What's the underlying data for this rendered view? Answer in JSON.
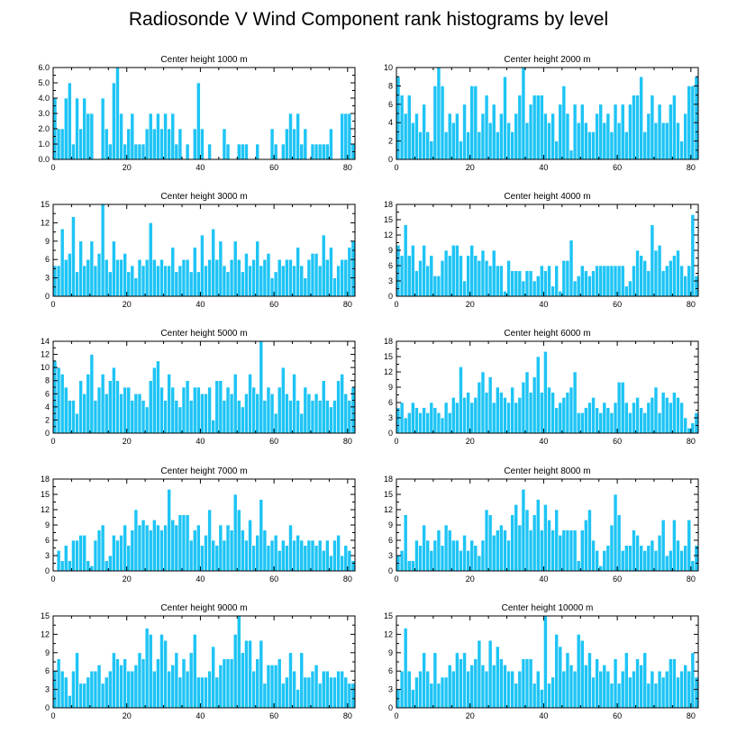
{
  "figure": {
    "title": "Radiosonde V Wind Component rank histograms by level"
  },
  "colors": {
    "bar": "#1ec4f5",
    "frame": "#000000"
  },
  "chart_data": [
    {
      "type": "bar",
      "title": "Center height 1000 m",
      "xlim": [
        0,
        82
      ],
      "ylim": [
        0,
        6
      ],
      "yticks": [
        0,
        1,
        2,
        3,
        4,
        5,
        6
      ],
      "ytick_labels": [
        "0.0",
        "1.0",
        "2.0",
        "3.0",
        "4.0",
        "5.0",
        "6.0"
      ],
      "xticks": [
        0,
        20,
        40,
        60,
        80
      ],
      "values": [
        4,
        2,
        2,
        4,
        5,
        1,
        4,
        2,
        4,
        3,
        3,
        0,
        0,
        4,
        2,
        1,
        5,
        6,
        3,
        1,
        2,
        3,
        1,
        1,
        1,
        2,
        3,
        2,
        3,
        2,
        3,
        2,
        3,
        1,
        2,
        0,
        1,
        0,
        2,
        5,
        2,
        0,
        1,
        0,
        0,
        0,
        2,
        1,
        0,
        0,
        1,
        1,
        1,
        0,
        0,
        1,
        0,
        0,
        0,
        2,
        1,
        0,
        1,
        2,
        3,
        2,
        3,
        1,
        2,
        0,
        1,
        1,
        1,
        1,
        1,
        2,
        0,
        0,
        3,
        3,
        3,
        1,
        4
      ]
    },
    {
      "type": "bar",
      "title": "Center height 2000 m",
      "xlim": [
        0,
        82
      ],
      "ylim": [
        0,
        10
      ],
      "yticks": [
        0,
        2,
        4,
        6,
        8,
        10
      ],
      "ytick_labels": [
        "0",
        "2",
        "4",
        "6",
        "8",
        "10"
      ],
      "xticks": [
        0,
        20,
        40,
        60,
        80
      ],
      "values": [
        9,
        7,
        5,
        7,
        4,
        5,
        3,
        6,
        3,
        2,
        8,
        10,
        8,
        3,
        5,
        4,
        5,
        2,
        6,
        3,
        8,
        8,
        3,
        5,
        7,
        4,
        6,
        3,
        5,
        9,
        4,
        3,
        5,
        7,
        10,
        4,
        6,
        7,
        7,
        7,
        5,
        4,
        5,
        2,
        6,
        8,
        5,
        1,
        6,
        4,
        6,
        4,
        3,
        3,
        5,
        6,
        4,
        5,
        3,
        6,
        4,
        6,
        3,
        6,
        7,
        7,
        9,
        3,
        5,
        7,
        4,
        6,
        4,
        4,
        6,
        7,
        4,
        2,
        5,
        8,
        8,
        9,
        9
      ]
    },
    {
      "type": "bar",
      "title": "Center height 3000 m",
      "xlim": [
        0,
        82
      ],
      "ylim": [
        0,
        15
      ],
      "yticks": [
        0,
        3,
        6,
        9,
        12,
        15
      ],
      "ytick_labels": [
        "0",
        "3",
        "6",
        "9",
        "12",
        "15"
      ],
      "xticks": [
        0,
        20,
        40,
        60,
        80
      ],
      "values": [
        5,
        5,
        11,
        6,
        7,
        13,
        4,
        9,
        5,
        6,
        9,
        5,
        7,
        15,
        6,
        4,
        9,
        6,
        6,
        7,
        4,
        5,
        3,
        6,
        5,
        6,
        12,
        6,
        5,
        6,
        5,
        5,
        8,
        4,
        5,
        6,
        6,
        4,
        8,
        4,
        10,
        5,
        6,
        11,
        6,
        9,
        5,
        4,
        6,
        9,
        6,
        4,
        7,
        5,
        6,
        9,
        5,
        6,
        7,
        3,
        4,
        6,
        5,
        6,
        6,
        5,
        8,
        5,
        3,
        6,
        7,
        7,
        5,
        10,
        6,
        8,
        3,
        5,
        6,
        6,
        8,
        9,
        10
      ]
    },
    {
      "type": "bar",
      "title": "Center height 4000 m",
      "xlim": [
        0,
        82
      ],
      "ylim": [
        0,
        18
      ],
      "yticks": [
        0,
        3,
        6,
        9,
        12,
        15,
        18
      ],
      "ytick_labels": [
        "0",
        "3",
        "6",
        "9",
        "12",
        "15",
        "18"
      ],
      "xticks": [
        0,
        20,
        40,
        60,
        80
      ],
      "values": [
        10,
        8,
        14,
        8,
        10,
        5,
        7,
        10,
        6,
        8,
        4,
        4,
        7,
        9,
        8,
        10,
        10,
        8,
        3,
        8,
        10,
        8,
        7,
        9,
        7,
        6,
        9,
        6,
        6,
        1,
        7,
        5,
        5,
        5,
        3,
        5,
        5,
        3,
        4,
        6,
        5,
        6,
        2,
        6,
        1,
        7,
        7,
        11,
        3,
        4,
        6,
        5,
        4,
        5,
        6,
        6,
        6,
        6,
        6,
        6,
        6,
        6,
        2,
        3,
        6,
        9,
        8,
        7,
        5,
        14,
        9,
        10,
        5,
        6,
        7,
        8,
        9,
        6,
        4,
        6,
        16,
        4,
        13
      ]
    },
    {
      "type": "bar",
      "title": "Center height 5000 m",
      "xlim": [
        0,
        82
      ],
      "ylim": [
        0,
        14
      ],
      "yticks": [
        0,
        2,
        4,
        6,
        8,
        10,
        12,
        14
      ],
      "ytick_labels": [
        "0",
        "2",
        "4",
        "6",
        "8",
        "10",
        "12",
        "14"
      ],
      "xticks": [
        0,
        20,
        40,
        60,
        80
      ],
      "values": [
        11,
        10,
        9,
        7,
        5,
        5,
        3,
        8,
        6,
        9,
        12,
        5,
        7,
        9,
        6,
        8,
        10,
        8,
        6,
        7,
        7,
        5,
        6,
        6,
        5,
        4,
        8,
        10,
        11,
        7,
        5,
        9,
        7,
        5,
        4,
        7,
        8,
        5,
        7,
        7,
        6,
        6,
        7,
        2,
        8,
        8,
        5,
        7,
        6,
        9,
        5,
        4,
        6,
        9,
        7,
        6,
        14,
        5,
        7,
        6,
        3,
        7,
        10,
        6,
        5,
        9,
        5,
        3,
        7,
        6,
        5,
        6,
        5,
        8,
        5,
        4,
        5,
        8,
        9,
        6,
        5,
        7,
        9
      ]
    },
    {
      "type": "bar",
      "title": "Center height 6000 m",
      "xlim": [
        0,
        82
      ],
      "ylim": [
        0,
        18
      ],
      "yticks": [
        0,
        3,
        6,
        9,
        12,
        15,
        18
      ],
      "ytick_labels": [
        "0",
        "3",
        "6",
        "9",
        "12",
        "15",
        "18"
      ],
      "xticks": [
        0,
        20,
        40,
        60,
        80
      ],
      "values": [
        5,
        6,
        3,
        4,
        6,
        5,
        4,
        5,
        4,
        6,
        5,
        4,
        3,
        6,
        4,
        7,
        6,
        13,
        7,
        8,
        6,
        7,
        10,
        12,
        8,
        11,
        6,
        9,
        8,
        7,
        6,
        9,
        6,
        7,
        10,
        12,
        8,
        11,
        15,
        8,
        16,
        9,
        8,
        5,
        6,
        7,
        8,
        9,
        12,
        4,
        4,
        5,
        6,
        7,
        5,
        4,
        6,
        5,
        4,
        6,
        10,
        10,
        6,
        4,
        6,
        7,
        5,
        4,
        6,
        7,
        9,
        4,
        8,
        7,
        6,
        8,
        7,
        6,
        3,
        1,
        2,
        4,
        2
      ]
    },
    {
      "type": "bar",
      "title": "Center height 7000 m",
      "xlim": [
        0,
        82
      ],
      "ylim": [
        0,
        18
      ],
      "yticks": [
        0,
        3,
        6,
        9,
        12,
        15,
        18
      ],
      "ytick_labels": [
        "0",
        "3",
        "6",
        "9",
        "12",
        "15",
        "18"
      ],
      "xticks": [
        0,
        20,
        40,
        60,
        80
      ],
      "values": [
        0,
        4,
        2,
        5,
        2,
        6,
        6,
        7,
        7,
        2,
        1,
        6,
        8,
        9,
        2,
        3,
        7,
        6,
        7,
        9,
        5,
        8,
        12,
        9,
        10,
        9,
        8,
        10,
        9,
        8,
        9,
        16,
        10,
        9,
        11,
        11,
        11,
        6,
        8,
        9,
        5,
        7,
        12,
        6,
        5,
        9,
        6,
        9,
        8,
        15,
        12,
        8,
        6,
        10,
        5,
        7,
        14,
        8,
        5,
        6,
        7,
        4,
        6,
        5,
        9,
        6,
        7,
        6,
        5,
        6,
        6,
        5,
        6,
        4,
        6,
        3,
        6,
        7,
        3,
        5,
        4,
        2,
        3
      ]
    },
    {
      "type": "bar",
      "title": "Center height 8000 m",
      "xlim": [
        0,
        82
      ],
      "ylim": [
        0,
        18
      ],
      "yticks": [
        0,
        3,
        6,
        9,
        12,
        15,
        18
      ],
      "ytick_labels": [
        "0",
        "3",
        "6",
        "9",
        "12",
        "15",
        "18"
      ],
      "xticks": [
        0,
        20,
        40,
        60,
        80
      ],
      "values": [
        3,
        4,
        11,
        2,
        2,
        6,
        5,
        9,
        6,
        4,
        6,
        8,
        5,
        9,
        8,
        6,
        6,
        4,
        7,
        4,
        6,
        5,
        3,
        6,
        12,
        11,
        7,
        8,
        9,
        8,
        6,
        11,
        13,
        9,
        16,
        12,
        8,
        11,
        14,
        8,
        13,
        10,
        8,
        12,
        7,
        8,
        8,
        8,
        8,
        2,
        8,
        10,
        12,
        6,
        4,
        1,
        4,
        5,
        9,
        15,
        11,
        4,
        5,
        5,
        8,
        7,
        5,
        4,
        5,
        6,
        4,
        7,
        10,
        3,
        4,
        10,
        6,
        4,
        5,
        10,
        2,
        5,
        4
      ]
    },
    {
      "type": "bar",
      "title": "Center height 9000 m",
      "xlim": [
        0,
        82
      ],
      "ylim": [
        0,
        15
      ],
      "yticks": [
        0,
        3,
        6,
        9,
        12,
        15
      ],
      "ytick_labels": [
        "0",
        "3",
        "6",
        "9",
        "12",
        "15"
      ],
      "xticks": [
        0,
        20,
        40,
        60,
        80
      ],
      "values": [
        6,
        8,
        6,
        5,
        2,
        6,
        9,
        4,
        4,
        5,
        6,
        6,
        7,
        4,
        5,
        6,
        9,
        8,
        7,
        8,
        6,
        6,
        7,
        9,
        8,
        13,
        12,
        6,
        8,
        12,
        11,
        6,
        7,
        9,
        5,
        8,
        6,
        9,
        12,
        5,
        5,
        5,
        6,
        10,
        5,
        7,
        8,
        8,
        8,
        12,
        15,
        9,
        11,
        11,
        6,
        8,
        11,
        4,
        7,
        7,
        7,
        8,
        4,
        5,
        9,
        6,
        3,
        9,
        5,
        5,
        6,
        7,
        4,
        6,
        6,
        5,
        5,
        6,
        6,
        5,
        4,
        4,
        3
      ]
    },
    {
      "type": "bar",
      "title": "Center height 10000 m",
      "xlim": [
        0,
        82
      ],
      "ylim": [
        0,
        15
      ],
      "yticks": [
        0,
        3,
        6,
        9,
        12,
        15
      ],
      "ytick_labels": [
        "0",
        "3",
        "6",
        "9",
        "12",
        "15"
      ],
      "xticks": [
        0,
        20,
        40,
        60,
        80
      ],
      "values": [
        3,
        6,
        13,
        6,
        3,
        5,
        6,
        9,
        6,
        4,
        9,
        4,
        5,
        5,
        7,
        6,
        9,
        8,
        9,
        6,
        7,
        8,
        11,
        7,
        6,
        11,
        7,
        10,
        8,
        7,
        6,
        6,
        4,
        6,
        8,
        8,
        8,
        4,
        6,
        3,
        15,
        4,
        5,
        12,
        10,
        6,
        9,
        7,
        6,
        12,
        11,
        7,
        9,
        5,
        8,
        6,
        7,
        6,
        4,
        8,
        4,
        6,
        9,
        5,
        6,
        8,
        7,
        9,
        4,
        6,
        4,
        6,
        5,
        6,
        8,
        8,
        5,
        6,
        7,
        6,
        9,
        5,
        6
      ]
    }
  ]
}
